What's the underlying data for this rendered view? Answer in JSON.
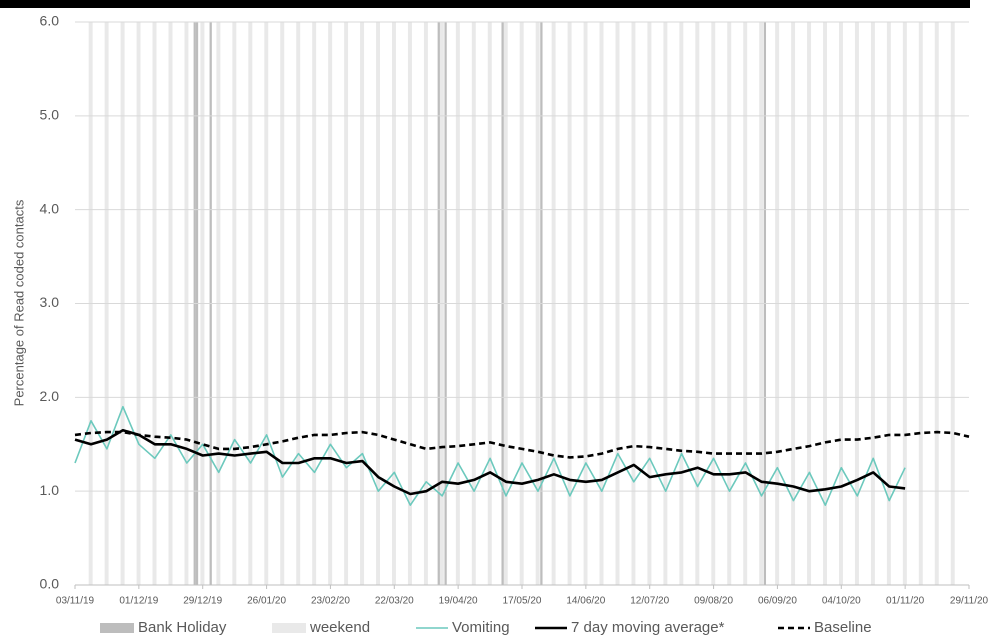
{
  "chart_data": {
    "type": "line",
    "y_label": "Percentage of Read coded contacts",
    "x": [
      "2019-11-03",
      "2019-11-10",
      "2019-11-17",
      "2019-11-24",
      "2019-12-01",
      "2019-12-08",
      "2019-12-15",
      "2019-12-22",
      "2019-12-29",
      "2020-01-05",
      "2020-01-12",
      "2020-01-19",
      "2020-01-26",
      "2020-02-02",
      "2020-02-09",
      "2020-02-16",
      "2020-02-23",
      "2020-03-01",
      "2020-03-08",
      "2020-03-15",
      "2020-03-22",
      "2020-03-29",
      "2020-04-05",
      "2020-04-12",
      "2020-04-19",
      "2020-04-26",
      "2020-05-03",
      "2020-05-10",
      "2020-05-17",
      "2020-05-24",
      "2020-05-31",
      "2020-06-07",
      "2020-06-14",
      "2020-06-21",
      "2020-06-28",
      "2020-07-05",
      "2020-07-12",
      "2020-07-19",
      "2020-07-26",
      "2020-08-02",
      "2020-08-09",
      "2020-08-16",
      "2020-08-23",
      "2020-08-30",
      "2020-09-06",
      "2020-09-13",
      "2020-09-20",
      "2020-09-27",
      "2020-10-04",
      "2020-10-11",
      "2020-10-18",
      "2020-10-25",
      "2020-11-01",
      "2020-11-08",
      "2020-11-15",
      "2020-11-22",
      "2020-11-29"
    ],
    "xlim": [
      "2019-11-03",
      "2020-11-29"
    ],
    "xticks": [
      {
        "value": "2019-11-03",
        "label": "03/11/19"
      },
      {
        "value": "2019-12-01",
        "label": "01/12/19"
      },
      {
        "value": "2019-12-29",
        "label": "29/12/19"
      },
      {
        "value": "2020-01-26",
        "label": "26/01/20"
      },
      {
        "value": "2020-02-23",
        "label": "23/02/20"
      },
      {
        "value": "2020-03-22",
        "label": "22/03/20"
      },
      {
        "value": "2020-04-19",
        "label": "19/04/20"
      },
      {
        "value": "2020-05-17",
        "label": "17/05/20"
      },
      {
        "value": "2020-06-14",
        "label": "14/06/20"
      },
      {
        "value": "2020-07-12",
        "label": "12/07/20"
      },
      {
        "value": "2020-08-09",
        "label": "09/08/20"
      },
      {
        "value": "2020-09-06",
        "label": "06/09/20"
      },
      {
        "value": "2020-10-04",
        "label": "04/10/20"
      },
      {
        "value": "2020-11-01",
        "label": "01/11/20"
      },
      {
        "value": "2020-11-29",
        "label": "29/11/20"
      }
    ],
    "ylim": [
      0,
      6
    ],
    "yticks": [
      {
        "value": 0,
        "label": "0.0"
      },
      {
        "value": 1,
        "label": "1.0"
      },
      {
        "value": 2,
        "label": "2.0"
      },
      {
        "value": 3,
        "label": "3.0"
      },
      {
        "value": 4,
        "label": "4.0"
      },
      {
        "value": 5,
        "label": "5.0"
      },
      {
        "value": 6,
        "label": "6.0"
      }
    ],
    "grid": true,
    "bank_holidays": {
      "name": "Bank Holiday",
      "color": "#bdbdbd",
      "dates": [
        "2019-12-25",
        "2019-12-26",
        "2020-01-01",
        "2020-04-10",
        "2020-04-13",
        "2020-05-08",
        "2020-05-25",
        "2020-08-31"
      ]
    },
    "weekends": {
      "name": "weekend",
      "color": "#e9e9e9",
      "dates": [
        "2019-11-09",
        "2019-11-16",
        "2019-11-23",
        "2019-11-30",
        "2019-12-07",
        "2019-12-14",
        "2019-12-21",
        "2019-12-28",
        "2020-01-04",
        "2020-01-11",
        "2020-01-18",
        "2020-01-25",
        "2020-02-01",
        "2020-02-08",
        "2020-02-15",
        "2020-02-22",
        "2020-02-29",
        "2020-03-07",
        "2020-03-14",
        "2020-03-21",
        "2020-03-28",
        "2020-04-04",
        "2020-04-11",
        "2020-04-18",
        "2020-04-25",
        "2020-05-02",
        "2020-05-09",
        "2020-05-16",
        "2020-05-23",
        "2020-05-30",
        "2020-06-06",
        "2020-06-13",
        "2020-06-20",
        "2020-06-27",
        "2020-07-04",
        "2020-07-11",
        "2020-07-18",
        "2020-07-25",
        "2020-08-01",
        "2020-08-08",
        "2020-08-15",
        "2020-08-22",
        "2020-08-29",
        "2020-09-05",
        "2020-09-12",
        "2020-09-19",
        "2020-09-26",
        "2020-10-03",
        "2020-10-10",
        "2020-10-17",
        "2020-10-24",
        "2020-10-31",
        "2020-11-07",
        "2020-11-14",
        "2020-11-21"
      ]
    },
    "series": [
      {
        "name": "Vomiting",
        "color": "#6cc9bd",
        "style": "solid",
        "values": [
          1.3,
          1.75,
          1.45,
          1.9,
          1.5,
          1.35,
          1.6,
          1.3,
          1.5,
          1.2,
          1.55,
          1.3,
          1.6,
          1.15,
          1.4,
          1.2,
          1.5,
          1.25,
          1.4,
          1.0,
          1.2,
          0.85,
          1.1,
          0.95,
          1.3,
          1.0,
          1.35,
          0.95,
          1.3,
          1.0,
          1.35,
          0.95,
          1.3,
          1.0,
          1.4,
          1.1,
          1.35,
          1.0,
          1.4,
          1.05,
          1.35,
          1.0,
          1.3,
          0.95,
          1.25,
          0.9,
          1.2,
          0.85,
          1.25,
          0.95,
          1.35,
          0.9,
          1.25,
          null,
          null,
          null,
          null
        ]
      },
      {
        "name": "7 day moving average*",
        "color": "#000000",
        "style": "solid",
        "values": [
          1.55,
          1.5,
          1.55,
          1.65,
          1.6,
          1.5,
          1.5,
          1.45,
          1.38,
          1.4,
          1.38,
          1.4,
          1.42,
          1.3,
          1.3,
          1.35,
          1.35,
          1.3,
          1.32,
          1.15,
          1.05,
          0.97,
          1.0,
          1.1,
          1.08,
          1.12,
          1.2,
          1.1,
          1.08,
          1.12,
          1.18,
          1.12,
          1.1,
          1.12,
          1.2,
          1.28,
          1.15,
          1.18,
          1.2,
          1.25,
          1.18,
          1.18,
          1.2,
          1.1,
          1.08,
          1.05,
          1.0,
          1.02,
          1.05,
          1.12,
          1.2,
          1.05,
          1.03,
          null,
          null,
          null,
          null
        ]
      },
      {
        "name": "Baseline",
        "color": "#000000",
        "style": "dashed",
        "values": [
          1.6,
          1.62,
          1.63,
          1.63,
          1.6,
          1.58,
          1.57,
          1.55,
          1.5,
          1.45,
          1.45,
          1.47,
          1.5,
          1.53,
          1.57,
          1.6,
          1.6,
          1.62,
          1.63,
          1.6,
          1.55,
          1.5,
          1.45,
          1.47,
          1.48,
          1.5,
          1.52,
          1.48,
          1.45,
          1.42,
          1.38,
          1.36,
          1.37,
          1.4,
          1.45,
          1.48,
          1.47,
          1.45,
          1.43,
          1.42,
          1.4,
          1.4,
          1.4,
          1.4,
          1.42,
          1.45,
          1.48,
          1.52,
          1.55,
          1.55,
          1.57,
          1.6,
          1.6,
          1.62,
          1.63,
          1.62,
          1.58
        ]
      }
    ]
  }
}
